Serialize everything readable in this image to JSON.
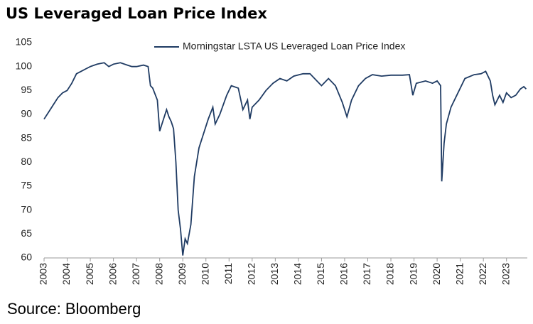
{
  "chart_data": {
    "type": "line",
    "title": "US Leveraged Loan Price Index",
    "source": "Source: Bloomberg",
    "x": [
      2003.0,
      2003.2,
      2003.4,
      2003.6,
      2003.8,
      2004.0,
      2004.2,
      2004.4,
      2004.6,
      2004.8,
      2005.0,
      2005.3,
      2005.6,
      2005.8,
      2006.0,
      2006.3,
      2006.6,
      2006.8,
      2007.0,
      2007.3,
      2007.5,
      2007.6,
      2007.7,
      2007.9,
      2008.0,
      2008.1,
      2008.3,
      2008.4,
      2008.5,
      2008.6,
      2008.7,
      2008.8,
      2008.9,
      2009.0,
      2009.1,
      2009.2,
      2009.35,
      2009.5,
      2009.7,
      2009.9,
      2010.1,
      2010.3,
      2010.4,
      2010.6,
      2010.9,
      2011.1,
      2011.4,
      2011.6,
      2011.8,
      2011.9,
      2012.0,
      2012.3,
      2012.6,
      2012.9,
      2013.2,
      2013.5,
      2013.8,
      2014.2,
      2014.5,
      2014.8,
      2015.0,
      2015.3,
      2015.6,
      2015.9,
      2016.1,
      2016.3,
      2016.6,
      2016.9,
      2017.2,
      2017.6,
      2018.0,
      2018.5,
      2018.8,
      2018.95,
      2019.1,
      2019.5,
      2019.8,
      2020.0,
      2020.15,
      2020.2,
      2020.3,
      2020.4,
      2020.6,
      2020.9,
      2021.2,
      2021.6,
      2021.9,
      2022.1,
      2022.3,
      2022.4,
      2022.5,
      2022.7,
      2022.85,
      2023.0,
      2023.2,
      2023.4,
      2023.6,
      2023.75,
      2023.85
    ],
    "series": [
      {
        "name": "Morningstar LSTA US Leveraged Loan Price Index",
        "color": "#1f3b63",
        "values": [
          89,
          90.5,
          92,
          93.5,
          94.5,
          95,
          96.5,
          98.5,
          99,
          99.5,
          100,
          100.5,
          100.8,
          100,
          100.5,
          100.8,
          100.3,
          100,
          100,
          100.3,
          100,
          96,
          95.5,
          93,
          86.5,
          88,
          91,
          89.5,
          88.5,
          87,
          80,
          70,
          66,
          60.5,
          64,
          63,
          67,
          77,
          83,
          86,
          89,
          91.5,
          88,
          90,
          94,
          96,
          95.5,
          91,
          93,
          89,
          91.5,
          93,
          95,
          96.5,
          97.5,
          97,
          98,
          98.5,
          98.5,
          97,
          96,
          97.5,
          96,
          92.5,
          89.5,
          93,
          96,
          97.5,
          98.3,
          98,
          98.2,
          98.2,
          98.3,
          94,
          96.5,
          97,
          96.5,
          97,
          96,
          76,
          84,
          88,
          91.5,
          94.5,
          97.5,
          98.3,
          98.5,
          99,
          97,
          94,
          92,
          94,
          92.5,
          94.5,
          93.5,
          94,
          95.3,
          95.8,
          95.3
        ]
      }
    ],
    "xlim": [
      2003,
      2023.9
    ],
    "xticks": [
      2003,
      2004,
      2005,
      2006,
      2007,
      2008,
      2009,
      2010,
      2011,
      2012,
      2013,
      2014,
      2015,
      2016,
      2017,
      2018,
      2019,
      2020,
      2021,
      2022,
      2023
    ],
    "ylim": [
      60,
      105
    ],
    "yticks": [
      60,
      65,
      70,
      75,
      80,
      85,
      90,
      95,
      100,
      105
    ]
  }
}
